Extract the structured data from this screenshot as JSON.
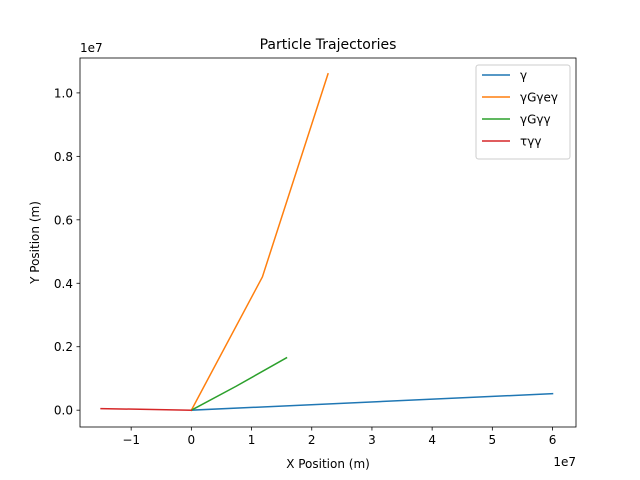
{
  "chart_data": {
    "type": "line",
    "title": "Particle Trajectories",
    "xlabel": "X Position (m)",
    "ylabel": "Y Position (m)",
    "x_offset_label": "1e7",
    "y_offset_label": "1e7",
    "xlim": [
      -18500000,
      63900000
    ],
    "ylim": [
      -530000,
      11100000
    ],
    "xticks": [
      -1,
      0,
      1,
      2,
      3,
      4,
      5,
      6
    ],
    "yticks": [
      0.0,
      0.2,
      0.4,
      0.6,
      0.8,
      1.0
    ],
    "tick_scale": 10000000,
    "legend_position": "upper right",
    "grid": false,
    "series": [
      {
        "name": "γ",
        "color": "#1f77b4",
        "x": [
          0,
          60000000
        ],
        "y": [
          0,
          520000
        ]
      },
      {
        "name": "γGγeγ",
        "color": "#ff7f0e",
        "x": [
          0,
          11800000,
          22700000
        ],
        "y": [
          0,
          4200000,
          10600000
        ]
      },
      {
        "name": "γGγγ",
        "color": "#2ca02c",
        "x": [
          0,
          7400000,
          15800000
        ],
        "y": [
          0,
          750000,
          1650000
        ]
      },
      {
        "name": "τγγ",
        "color": "#d62728",
        "x": [
          -15000000,
          0
        ],
        "y": [
          50000,
          0
        ]
      }
    ]
  }
}
